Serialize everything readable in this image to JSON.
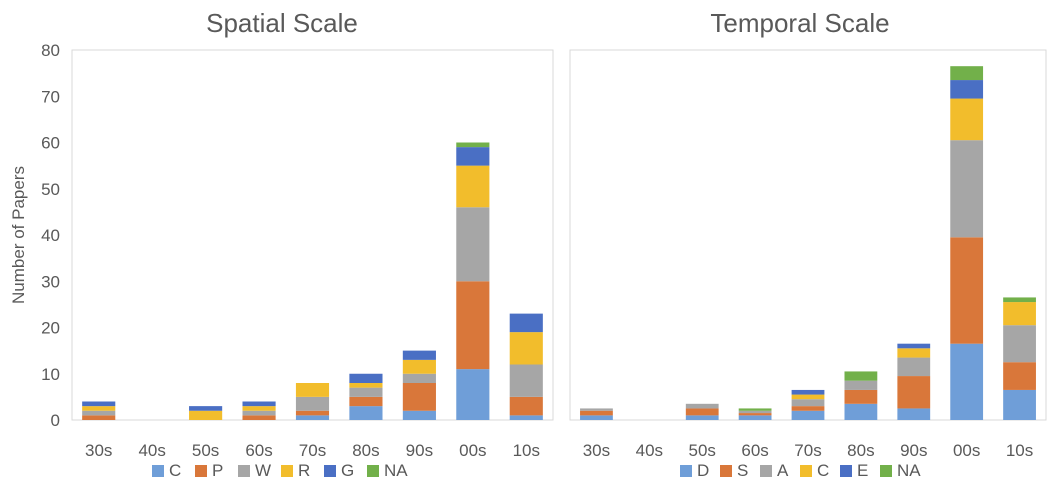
{
  "chart_data": [
    {
      "type": "bar",
      "stacked": true,
      "title": "Spatial Scale",
      "ylabel": "Number of Papers",
      "ylim": [
        0,
        80
      ],
      "yticks": [
        0,
        10,
        20,
        30,
        40,
        50,
        60,
        70,
        80
      ],
      "categories": [
        "30s",
        "40s",
        "50s",
        "60s",
        "70s",
        "80s",
        "90s",
        "00s",
        "10s"
      ],
      "legend_position": "bottom",
      "series": [
        {
          "name": "C",
          "color": "#6f9ed8",
          "values": [
            0,
            0,
            0,
            0,
            1,
            3,
            2,
            11,
            1
          ]
        },
        {
          "name": "P",
          "color": "#d9773a",
          "values": [
            1,
            0,
            0,
            1,
            1,
            2,
            6,
            19,
            4
          ]
        },
        {
          "name": "W",
          "color": "#a6a6a6",
          "values": [
            1,
            0,
            0,
            1,
            3,
            2,
            2,
            16,
            7
          ]
        },
        {
          "name": "R",
          "color": "#f2bd2c",
          "values": [
            1,
            0,
            2,
            1,
            3,
            1,
            3,
            9,
            7
          ]
        },
        {
          "name": "G",
          "color": "#4a6fc4",
          "values": [
            1,
            0,
            1,
            1,
            0,
            2,
            2,
            4,
            4
          ]
        },
        {
          "name": "NA",
          "color": "#72b04a",
          "values": [
            0,
            0,
            0,
            0,
            0,
            0,
            0,
            1,
            0
          ]
        }
      ]
    },
    {
      "type": "bar",
      "stacked": true,
      "title": "Temporal Scale",
      "ylim": [
        0,
        80
      ],
      "categories": [
        "30s",
        "40s",
        "50s",
        "60s",
        "70s",
        "80s",
        "90s",
        "00s",
        "10s"
      ],
      "legend_position": "bottom",
      "series": [
        {
          "name": "D",
          "color": "#6f9ed8",
          "values": [
            1,
            0,
            1,
            1,
            2,
            3.5,
            2.5,
            16.5,
            6.5
          ]
        },
        {
          "name": "S",
          "color": "#d9773a",
          "values": [
            1,
            0,
            1.5,
            0.5,
            1,
            3,
            7,
            23,
            6
          ]
        },
        {
          "name": "A",
          "color": "#a6a6a6",
          "values": [
            0.5,
            0,
            1,
            0.5,
            1.5,
            2,
            4,
            21,
            8
          ]
        },
        {
          "name": "C",
          "color": "#f2bd2c",
          "values": [
            0,
            0,
            0,
            0,
            1,
            0,
            2,
            9,
            5
          ]
        },
        {
          "name": "E",
          "color": "#4a6fc4",
          "values": [
            0,
            0,
            0,
            0,
            1,
            0,
            1,
            4,
            0
          ]
        },
        {
          "name": "NA",
          "color": "#72b04a",
          "values": [
            0,
            0,
            0,
            0.5,
            0,
            2,
            0,
            3,
            1
          ]
        }
      ]
    }
  ]
}
